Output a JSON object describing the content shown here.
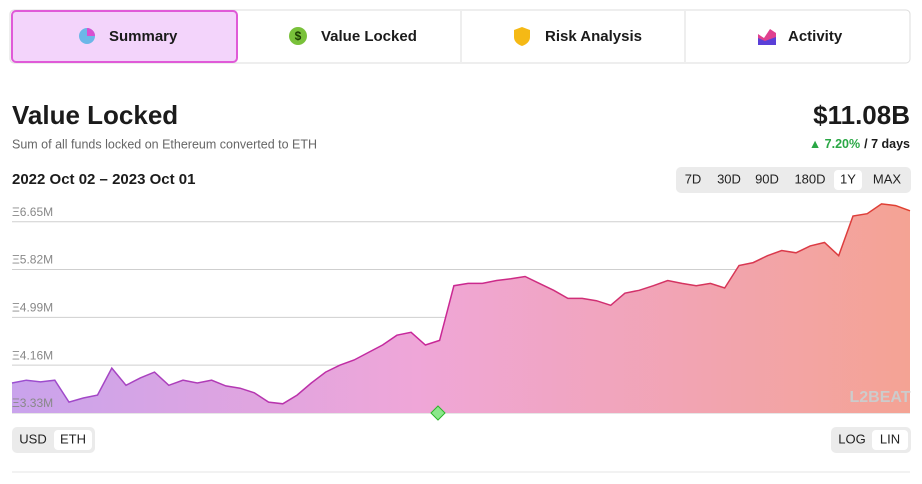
{
  "tabs": [
    "Summary",
    "Value Locked",
    "Risk Analysis",
    "Activity"
  ],
  "header": {
    "title": "Value Locked",
    "subtitle": "Sum of all funds locked on Ethereum converted to ETH",
    "total": "$11.08B",
    "change": "7.20%",
    "period": "/ 7 days"
  },
  "range_label": "2022 Oct 02 – 2023 Oct 01",
  "range_buttons": [
    "7D",
    "30D",
    "90D",
    "180D",
    "1Y",
    "MAX"
  ],
  "unit_buttons": [
    "USD",
    "ETH"
  ],
  "scale_buttons": [
    "LOG",
    "LIN"
  ],
  "watermark": "L2BEAT",
  "chart_data": {
    "type": "area",
    "categories": [
      null,
      null,
      null,
      null,
      null,
      null,
      null,
      null,
      null,
      null,
      null,
      null,
      null,
      null,
      null,
      null,
      null,
      null,
      null,
      null,
      null,
      null,
      null,
      null,
      null,
      null,
      null,
      null,
      null,
      null,
      null,
      null,
      null,
      null,
      null,
      null,
      null,
      null,
      null,
      null,
      null,
      null,
      null,
      null,
      null,
      null,
      null,
      null,
      null,
      null,
      null,
      null,
      null,
      null,
      null,
      null,
      null,
      null,
      null,
      null,
      null,
      null,
      null,
      null
    ],
    "values": [
      3.85,
      3.9,
      3.87,
      3.9,
      3.52,
      3.59,
      3.64,
      4.11,
      3.81,
      3.94,
      4.04,
      3.81,
      3.9,
      3.85,
      3.9,
      3.8,
      3.76,
      3.68,
      3.52,
      3.49,
      3.64,
      3.85,
      4.04,
      4.16,
      4.25,
      4.38,
      4.51,
      4.68,
      4.73,
      4.51,
      4.59,
      5.54,
      5.58,
      5.58,
      5.63,
      5.66,
      5.7,
      5.58,
      5.46,
      5.32,
      5.32,
      5.28,
      5.2,
      5.41,
      5.46,
      5.54,
      5.63,
      5.58,
      5.54,
      5.58,
      5.5,
      5.89,
      5.94,
      6.06,
      6.15,
      6.11,
      6.23,
      6.29,
      6.06,
      6.75,
      6.79,
      6.96,
      6.93,
      6.84
    ],
    "ylim": [
      3.33,
      7.01
    ],
    "yticks": [
      {
        "value": 3.33,
        "label": "Ξ3.33M"
      },
      {
        "value": 4.16,
        "label": "Ξ4.16M"
      },
      {
        "value": 4.99,
        "label": "Ξ4.99M"
      },
      {
        "value": 5.82,
        "label": "Ξ5.82M"
      },
      {
        "value": 6.65,
        "label": "Ξ6.65M"
      }
    ],
    "grid": true
  }
}
